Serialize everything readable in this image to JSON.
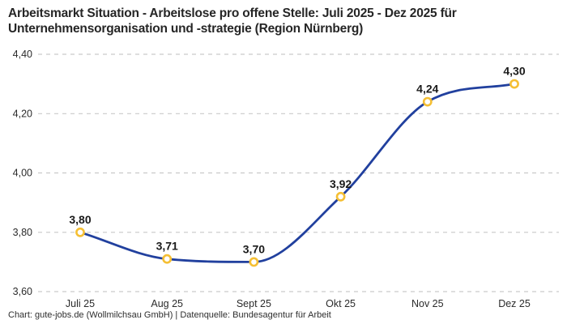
{
  "header": {
    "title_lines": [
      "Arbeitsmarkt Situation - Arbeitslose pro offene Stelle: Juli 2025 - Dez 2025 für",
      "Unternehmensorganisation und -strategie (Region Nürnberg)"
    ]
  },
  "footer": {
    "credit": "Chart: gute-jobs.de (Wollmilchsau GmbH) | Datenquelle: Bundesagentur für Arbeit"
  },
  "chart_data": {
    "type": "line",
    "title": "Arbeitsmarkt Situation - Arbeitslose pro offene Stelle: Juli 2025 - Dez 2025 für Unternehmensorganisation und -strategie (Region Nürnberg)",
    "categories": [
      "Juli 25",
      "Aug 25",
      "Sept 25",
      "Okt 25",
      "Nov 25",
      "Dez 25"
    ],
    "values": [
      3.8,
      3.71,
      3.7,
      3.92,
      4.24,
      4.3
    ],
    "value_labels": [
      "3,80",
      "3,71",
      "3,70",
      "3,92",
      "4,24",
      "4,30"
    ],
    "y_ticks": [
      3.6,
      3.8,
      4.0,
      4.2,
      4.4
    ],
    "y_tick_labels": [
      "3,60",
      "3,80",
      "4,00",
      "4,20",
      "4,40"
    ],
    "ylim": [
      3.6,
      4.4
    ],
    "xlabel": "",
    "ylabel": "",
    "grid": "horizontal-dashed",
    "legend": "none",
    "curve": "smooth-monotone",
    "colors": {
      "line": "#21409e",
      "marker_stroke": "#f5bf34",
      "marker_fill": "#ffffff",
      "grid": "#c9c9c9",
      "tick_text": "#2b2b2b",
      "label_text": "#1a1a1a"
    }
  }
}
